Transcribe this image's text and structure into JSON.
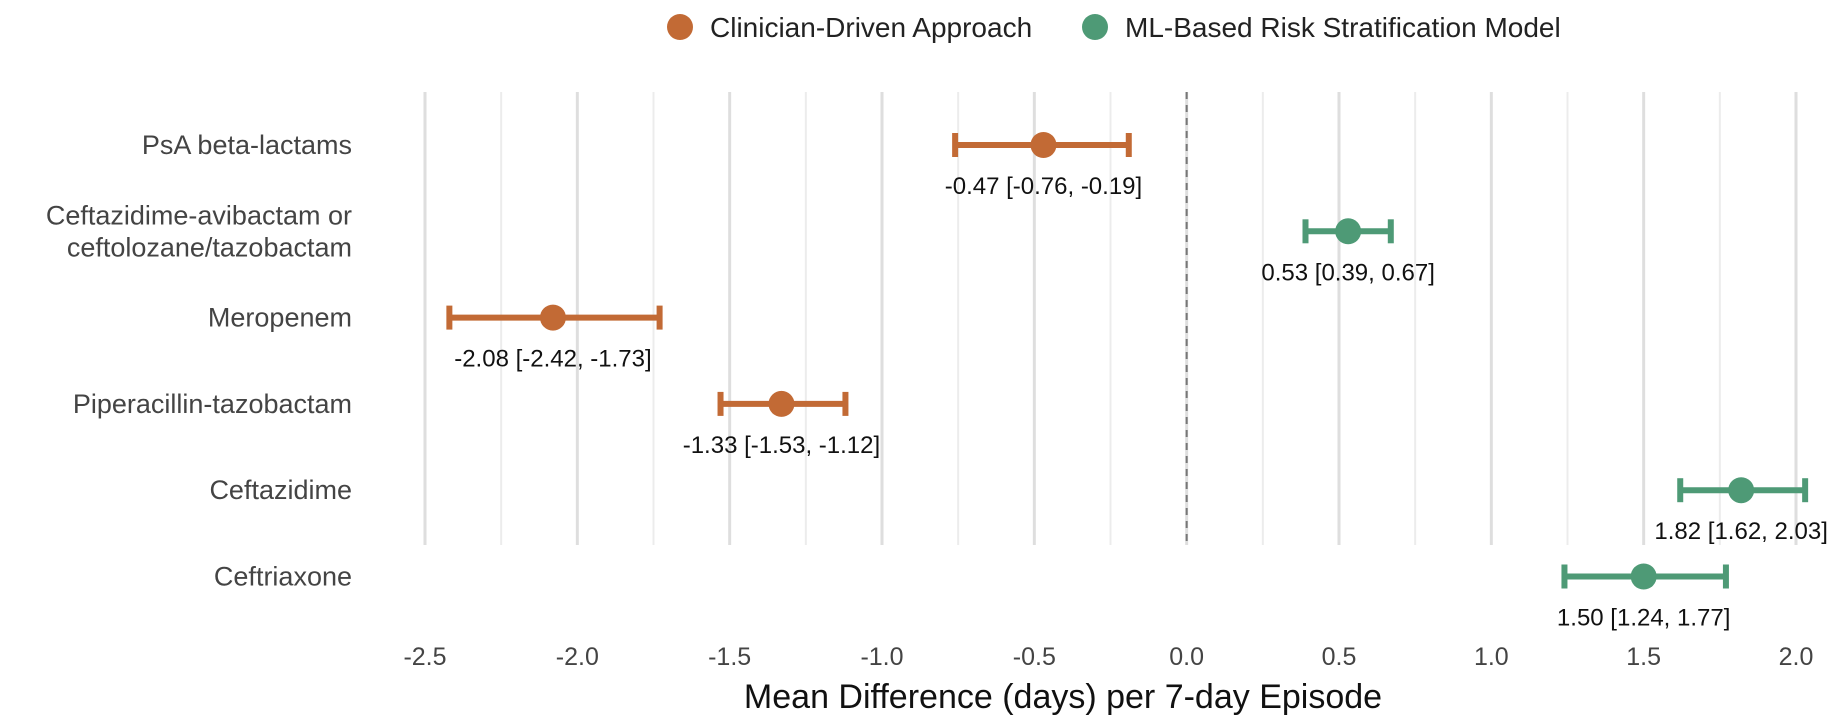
{
  "chart_data": {
    "type": "forest",
    "xlabel": "Mean Difference (days) per 7-day Episode",
    "ylabel": "",
    "xlim": [
      -2.5,
      2.0
    ],
    "x_ticks": [
      -2.5,
      -2.0,
      -1.5,
      -1.0,
      -0.5,
      0.0,
      0.5,
      1.0,
      1.5,
      2.0
    ],
    "x_tick_labels": [
      "-2.5",
      "-2.0",
      "-1.5",
      "-1.0",
      "-0.5",
      "0.0",
      "0.5",
      "1.0",
      "1.5",
      "2.0"
    ],
    "reference_line": 0.0,
    "grid": true,
    "legend_position": "top",
    "legend": [
      {
        "name": "Clinician-Driven Approach",
        "color": "#C26A35"
      },
      {
        "name": "ML-Based Risk Stratification Model",
        "color": "#4E9A76"
      }
    ],
    "categories": [
      [
        "PsA beta-lactams"
      ],
      [
        "Ceftazidime-avibactam or",
        "ceftolozane/tazobactam"
      ],
      [
        "Meropenem"
      ],
      [
        "Piperacillin-tazobactam"
      ],
      [
        "Ceftazidime"
      ],
      [
        "Ceftriaxone"
      ]
    ],
    "points": [
      {
        "category_index": 0,
        "estimate": -0.47,
        "lower": -0.76,
        "upper": -0.19,
        "group": 0,
        "label": "-0.47 [-0.76, -0.19]"
      },
      {
        "category_index": 1,
        "estimate": 0.53,
        "lower": 0.39,
        "upper": 0.67,
        "group": 1,
        "label": "0.53 [0.39, 0.67]"
      },
      {
        "category_index": 2,
        "estimate": -2.08,
        "lower": -2.42,
        "upper": -1.73,
        "group": 0,
        "label": "-2.08 [-2.42, -1.73]"
      },
      {
        "category_index": 3,
        "estimate": -1.33,
        "lower": -1.53,
        "upper": -1.12,
        "group": 0,
        "label": "-1.33 [-1.53, -1.12]"
      },
      {
        "category_index": 4,
        "estimate": 1.82,
        "lower": 1.62,
        "upper": 2.03,
        "group": 1,
        "label": "1.82 [1.62, 2.03]"
      },
      {
        "category_index": 5,
        "estimate": 1.5,
        "lower": 1.24,
        "upper": 1.77,
        "group": 1,
        "label": "1.50 [1.24, 1.77]"
      }
    ]
  }
}
